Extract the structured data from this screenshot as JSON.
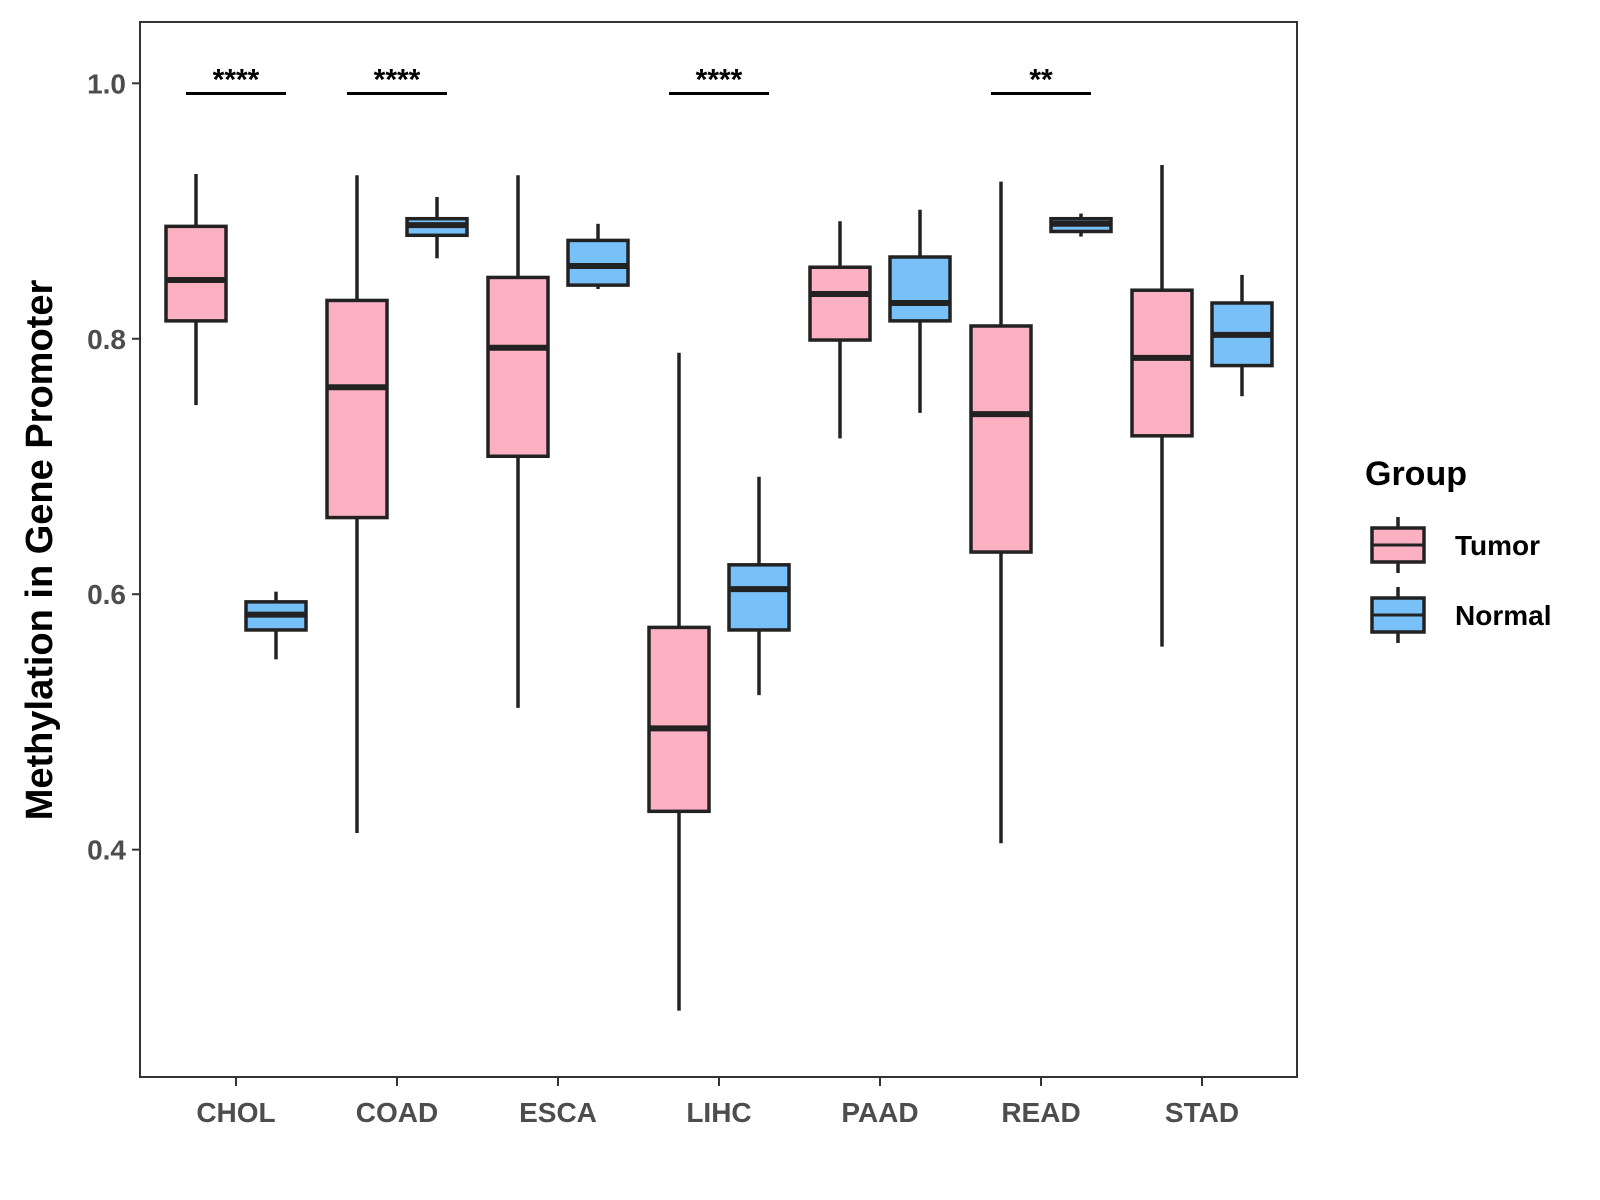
{
  "chart_data": {
    "type": "boxplot",
    "title": "",
    "xlabel": "",
    "ylabel": "Methylation in Gene Promoter",
    "ylim": [
      0.222,
      1.048
    ],
    "yticks": [
      0.4,
      0.6,
      0.8,
      1.0
    ],
    "ytick_labels": [
      "0.4",
      "0.6",
      "0.8",
      "1.0"
    ],
    "categories": [
      "CHOL",
      "COAD",
      "ESCA",
      "LIHC",
      "PAAD",
      "READ",
      "STAD"
    ],
    "legend": {
      "title": "Group",
      "position": "right",
      "entries": [
        {
          "name": "Tumor",
          "color": "#FBB1C2"
        },
        {
          "name": "Normal",
          "color": "#78C1F8"
        }
      ]
    },
    "series": [
      {
        "name": "Tumor",
        "color": "#FBB1C2",
        "boxes": [
          {
            "category": "CHOL",
            "min": 0.748,
            "q1": 0.814,
            "median": 0.846,
            "q3": 0.888,
            "max": 0.929
          },
          {
            "category": "COAD",
            "min": 0.413,
            "q1": 0.66,
            "median": 0.762,
            "q3": 0.83,
            "max": 0.928
          },
          {
            "category": "ESCA",
            "min": 0.511,
            "q1": 0.708,
            "median": 0.793,
            "q3": 0.848,
            "max": 0.928
          },
          {
            "category": "LIHC",
            "min": 0.274,
            "q1": 0.43,
            "median": 0.495,
            "q3": 0.574,
            "max": 0.789
          },
          {
            "category": "PAAD",
            "min": 0.722,
            "q1": 0.799,
            "median": 0.835,
            "q3": 0.856,
            "max": 0.892
          },
          {
            "category": "READ",
            "min": 0.405,
            "q1": 0.633,
            "median": 0.741,
            "q3": 0.81,
            "max": 0.923
          },
          {
            "category": "STAD",
            "min": 0.559,
            "q1": 0.724,
            "median": 0.785,
            "q3": 0.838,
            "max": 0.936
          }
        ]
      },
      {
        "name": "Normal",
        "color": "#78C1F8",
        "boxes": [
          {
            "category": "CHOL",
            "min": 0.549,
            "q1": 0.572,
            "median": 0.584,
            "q3": 0.594,
            "max": 0.602
          },
          {
            "category": "COAD",
            "min": 0.863,
            "q1": 0.881,
            "median": 0.889,
            "q3": 0.894,
            "max": 0.911
          },
          {
            "category": "ESCA",
            "min": 0.839,
            "q1": 0.842,
            "median": 0.857,
            "q3": 0.877,
            "max": 0.89
          },
          {
            "category": "LIHC",
            "min": 0.521,
            "q1": 0.572,
            "median": 0.604,
            "q3": 0.623,
            "max": 0.692
          },
          {
            "category": "PAAD",
            "min": 0.742,
            "q1": 0.814,
            "median": 0.828,
            "q3": 0.864,
            "max": 0.901
          },
          {
            "category": "READ",
            "min": 0.88,
            "q1": 0.884,
            "median": 0.89,
            "q3": 0.894,
            "max": 0.898
          },
          {
            "category": "STAD",
            "min": 0.755,
            "q1": 0.779,
            "median": 0.803,
            "q3": 0.828,
            "max": 0.85
          }
        ]
      }
    ],
    "significance": [
      {
        "category": "CHOL",
        "label": "****",
        "y": 0.992
      },
      {
        "category": "COAD",
        "label": "****",
        "y": 0.992
      },
      {
        "category": "LIHC",
        "label": "****",
        "y": 0.992
      },
      {
        "category": "READ",
        "label": "**",
        "y": 0.992
      }
    ],
    "grid": false
  }
}
